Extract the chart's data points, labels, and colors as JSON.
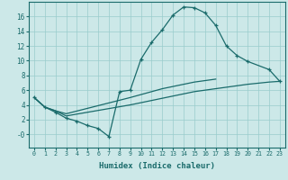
{
  "xlabel": "Humidex (Indice chaleur)",
  "bg_color": "#cce8e8",
  "line_color": "#1a6b6b",
  "grid_color": "#99cccc",
  "xlim": [
    -0.5,
    23.5
  ],
  "ylim": [
    -1.8,
    18.0
  ],
  "xticks": [
    0,
    1,
    2,
    3,
    4,
    5,
    6,
    7,
    8,
    9,
    10,
    11,
    12,
    13,
    14,
    15,
    16,
    17,
    18,
    19,
    20,
    21,
    22,
    23
  ],
  "yticks": [
    0,
    2,
    4,
    6,
    8,
    10,
    12,
    14,
    16
  ],
  "ytick_labels": [
    "-0",
    "2",
    "4",
    "6",
    "8",
    "10",
    "12",
    "14",
    "16"
  ],
  "curve1_x": [
    0,
    1,
    2,
    3,
    4,
    5,
    6,
    7,
    8,
    9,
    10,
    11,
    12,
    13,
    14,
    15,
    16,
    17,
    18,
    19,
    20,
    22,
    23
  ],
  "curve1_y": [
    5.0,
    3.7,
    3.0,
    2.2,
    1.8,
    1.2,
    0.8,
    -0.3,
    5.8,
    6.0,
    10.2,
    12.5,
    14.2,
    16.2,
    17.3,
    17.2,
    16.5,
    14.8,
    12.0,
    10.7,
    9.9,
    8.8,
    7.2
  ],
  "curve2_x": [
    0,
    1,
    2,
    3,
    9,
    10,
    11,
    12,
    13,
    14,
    15,
    16,
    17,
    18,
    19,
    20,
    22,
    23
  ],
  "curve2_y": [
    5.0,
    3.7,
    3.2,
    2.5,
    4.0,
    4.3,
    4.6,
    4.9,
    5.2,
    5.5,
    5.8,
    6.0,
    6.2,
    6.4,
    6.6,
    6.8,
    7.1,
    7.2
  ],
  "curve3_x": [
    0,
    1,
    2,
    3,
    9,
    10,
    11,
    12,
    13,
    14,
    15,
    16,
    17
  ],
  "curve3_y": [
    5.0,
    3.7,
    3.2,
    2.8,
    5.0,
    5.4,
    5.8,
    6.2,
    6.5,
    6.8,
    7.1,
    7.3,
    7.5
  ]
}
